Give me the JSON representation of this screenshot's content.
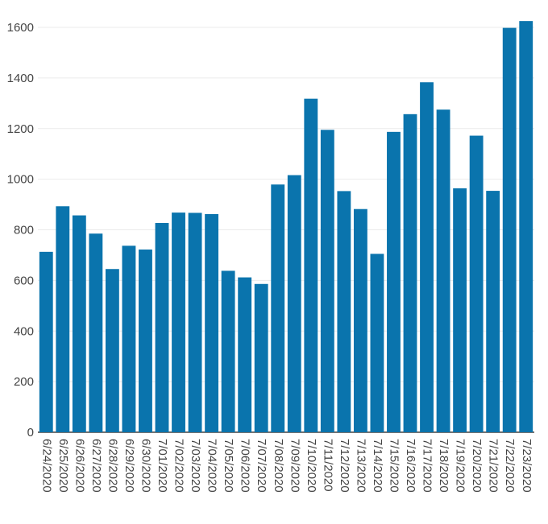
{
  "chart_data": {
    "type": "bar",
    "title": "",
    "xlabel": "",
    "ylabel": "",
    "categories": [
      "6/24/2020",
      "6/25/2020",
      "6/26/2020",
      "6/27/2020",
      "6/28/2020",
      "6/29/2020",
      "6/30/2020",
      "7/01/2020",
      "7/02/2020",
      "7/03/2020",
      "7/04/2020",
      "7/05/2020",
      "7/06/2020",
      "7/07/2020",
      "7/08/2020",
      "7/09/2020",
      "7/10/2020",
      "7/11/2020",
      "7/12/2020",
      "7/13/2020",
      "7/14/2020",
      "7/15/2020",
      "7/16/2020",
      "7/17/2020",
      "7/18/2020",
      "7/19/2020",
      "7/20/2020",
      "7/21/2020",
      "7/22/2020",
      "7/23/2020"
    ],
    "values": [
      713,
      893,
      857,
      785,
      645,
      737,
      722,
      827,
      868,
      867,
      862,
      638,
      612,
      586,
      979,
      1016,
      1318,
      1195,
      953,
      882,
      705,
      1187,
      1257,
      1383,
      1275,
      964,
      1172,
      954,
      1598,
      1625
    ],
    "yticks": [
      0,
      200,
      400,
      600,
      800,
      1000,
      1200,
      1400,
      1600
    ],
    "ylim": [
      0,
      1660
    ],
    "grid": true,
    "bar_color": "#0a74ad",
    "grid_color": "#ebebeb",
    "axis_color": "#444444"
  }
}
